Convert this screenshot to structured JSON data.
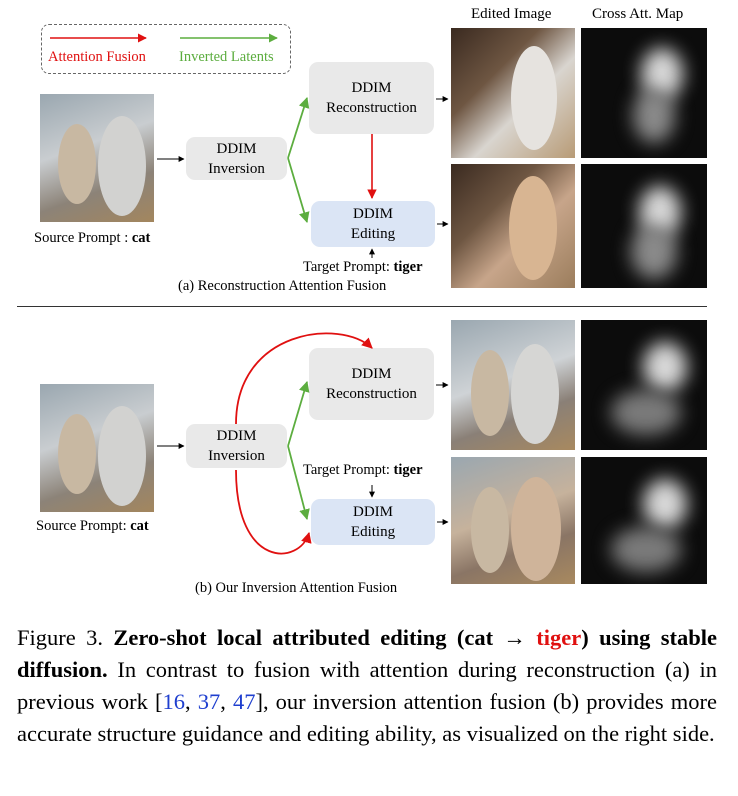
{
  "legend": {
    "attention_fusion": "Attention Fusion",
    "inverted_latents": "Inverted Latents",
    "attention_color": "#e01010",
    "latents_color": "#5cad3f"
  },
  "column_headers": {
    "edited_image": "Edited Image",
    "cross_att_map": "Cross Att. Map"
  },
  "panel_a": {
    "source_prompt_label": "Source Prompt : ",
    "source_prompt_word": "cat",
    "inversion_line1": "DDIM",
    "inversion_line2": "Inversion",
    "recon_line1": "DDIM",
    "recon_line2": "Reconstruction",
    "edit_line1": "DDIM",
    "edit_line2": "Editing",
    "target_prompt_label": "Target Prompt: ",
    "target_prompt_word": "tiger",
    "subtitle": "(a) Reconstruction Attention Fusion"
  },
  "panel_b": {
    "source_prompt_label": "Source Prompt: ",
    "source_prompt_word": "cat",
    "inversion_line1": "DDIM",
    "inversion_line2": "Inversion",
    "recon_line1": "DDIM",
    "recon_line2": "Reconstruction",
    "edit_line1": "DDIM",
    "edit_line2": "Editing",
    "target_prompt_label": "Target Prompt: ",
    "target_prompt_word": "tiger",
    "subtitle": "(b) Our Inversion Attention Fusion"
  },
  "caption": {
    "figure_label": "Figure 3. ",
    "bold_part1": "Zero-shot local attributed editing (cat → ",
    "bold_tiger": "tiger",
    "bold_part2": ") using stable diffusion.",
    "text_part1": " In contrast to fusion with attention during reconstruction (a) in previous work [",
    "cite1": "16",
    "sep1": ", ",
    "cite2": "37",
    "sep2": ", ",
    "cite3": "47",
    "text_part2": "], our inversion attention fusion (b) provides more accurate structure guidance and editing ability, as visualized on the right side."
  }
}
